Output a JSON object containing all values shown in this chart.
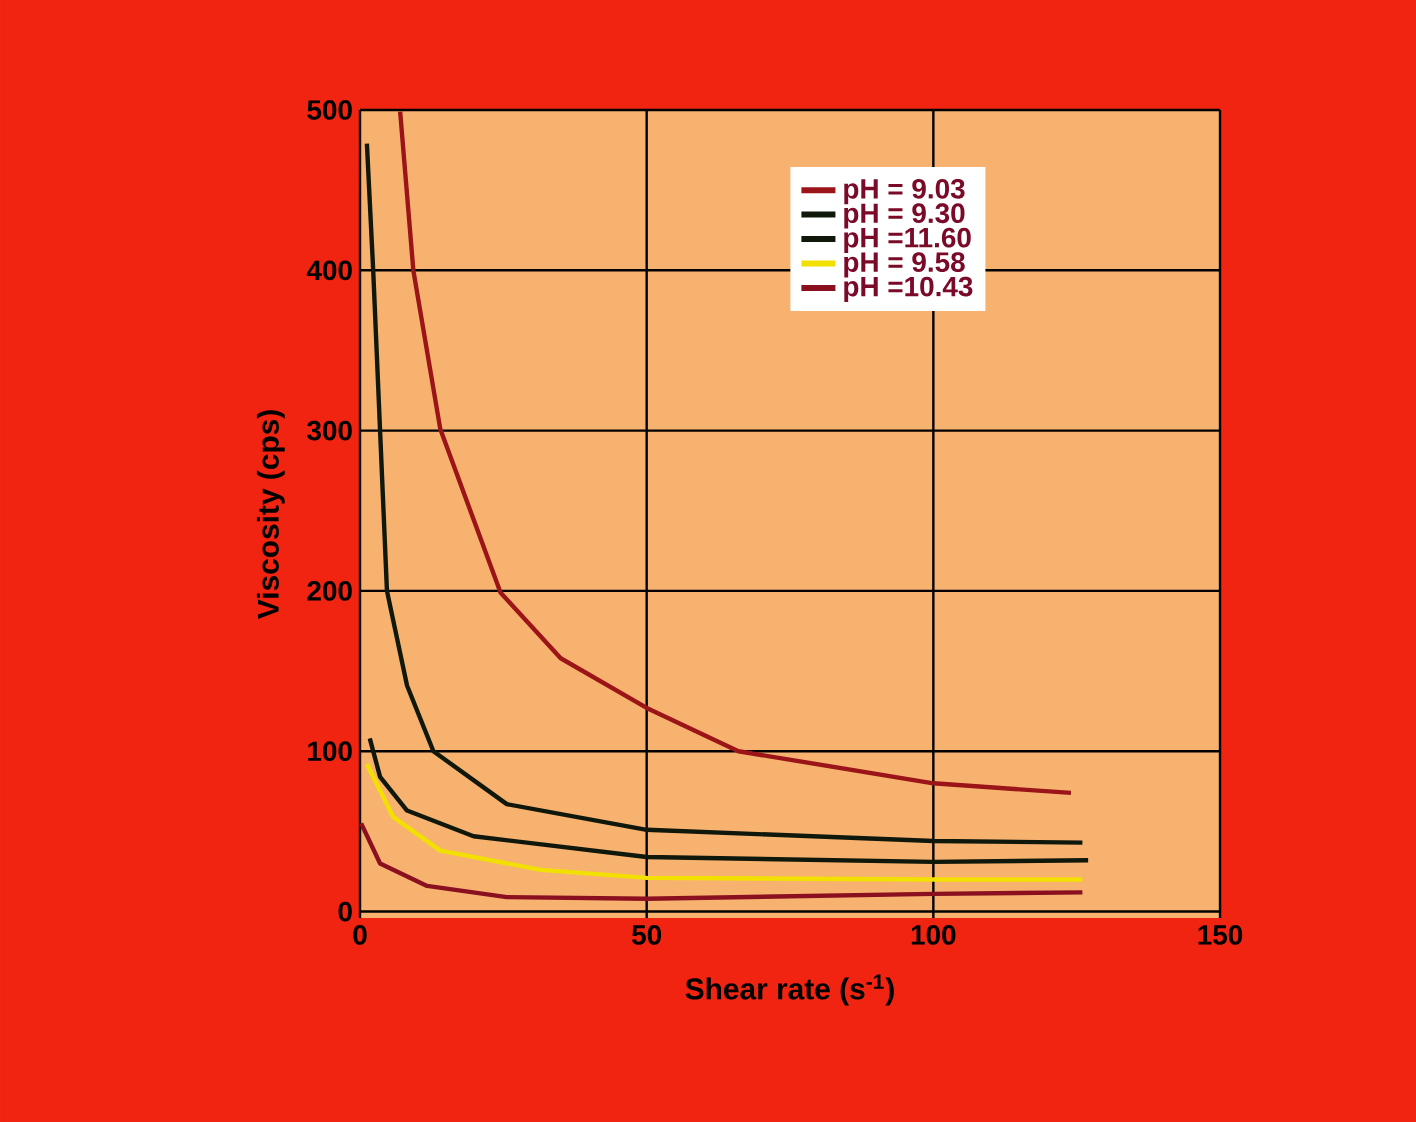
{
  "chart_data": {
    "type": "line",
    "xlabel": "Shear rate  (s$^{-1}$)",
    "ylabel": "Viscosity  (cps)",
    "xlim": [
      0,
      150
    ],
    "ylim": [
      -4,
      500
    ],
    "xticks": [
      0,
      50,
      100,
      150
    ],
    "yticks": [
      0,
      100,
      200,
      300,
      400,
      500
    ],
    "grid": true,
    "legend": "top right",
    "line_style": "solid",
    "marker": "none",
    "series": [
      {
        "name": "pH = 9.03",
        "color": "#9a1418",
        "x": [
          7,
          9.3,
          14,
          24.5,
          35,
          50,
          66,
          100,
          124
        ],
        "values": [
          499,
          400,
          301,
          199,
          158,
          127,
          100,
          80,
          74
        ]
      },
      {
        "name": "pH = 9.30",
        "color": "#10180c",
        "x": [
          1.2,
          2.3,
          4.7,
          8.2,
          12.8,
          25.6,
          50,
          100,
          126
        ],
        "values": [
          479,
          400,
          200,
          141,
          100,
          67,
          51,
          44,
          43
        ]
      },
      {
        "name": "pH =11.60",
        "color": "#10180c",
        "x": [
          1.7,
          3.5,
          8.2,
          19.8,
          50,
          100,
          127
        ],
        "values": [
          108,
          84,
          63,
          47,
          34,
          31,
          32
        ]
      },
      {
        "name": "pH = 9.58",
        "color": "#f2e000",
        "x": [
          1.2,
          5.8,
          14,
          31.5,
          50,
          100,
          126
        ],
        "values": [
          92,
          59,
          38,
          26,
          21,
          20,
          20
        ]
      },
      {
        "name": "pH =10.43",
        "color": "#8a1020",
        "x": [
          0.2,
          3.5,
          11.7,
          25.6,
          50,
          100,
          126
        ],
        "values": [
          55,
          30,
          16,
          9,
          8,
          11,
          12
        ]
      }
    ]
  }
}
